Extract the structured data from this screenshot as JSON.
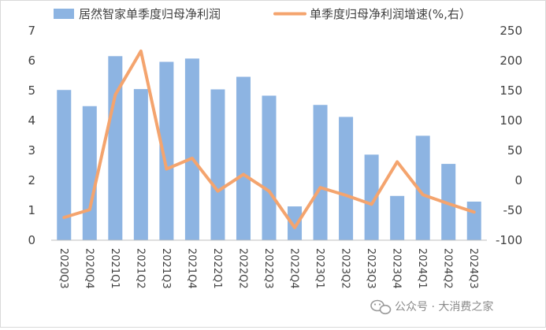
{
  "chart_data": {
    "type": "bar",
    "categories": [
      "2020Q3",
      "2020Q4",
      "2021Q1",
      "2021Q2",
      "2021Q3",
      "2021Q4",
      "2022Q1",
      "2022Q2",
      "2022Q3",
      "2022Q4",
      "2023Q1",
      "2023Q2",
      "2023Q3",
      "2023Q4",
      "2024Q1",
      "2024Q2",
      "2024Q3"
    ],
    "series": [
      {
        "name": "居然智家单季度归母净利润",
        "type": "bar",
        "axis": "left",
        "color": "#8db4e2",
        "values": [
          5.02,
          4.48,
          6.15,
          5.05,
          5.96,
          6.07,
          5.04,
          5.46,
          4.83,
          1.13,
          4.52,
          4.12,
          2.86,
          1.48,
          3.49,
          2.55,
          1.29
        ]
      },
      {
        "name": "单季度归母净利润增速(%,右）",
        "type": "line",
        "axis": "right",
        "color": "#f4a46e",
        "values": [
          -62,
          -49,
          143,
          216,
          19,
          37,
          -18,
          10,
          -18,
          -79,
          -12,
          -25,
          -40,
          31,
          -24,
          -39,
          -53
        ]
      }
    ],
    "y_left": {
      "min": 0,
      "max": 7,
      "ticks": [
        0,
        1,
        2,
        3,
        4,
        5,
        6,
        7
      ]
    },
    "y_right": {
      "min": -100,
      "max": 250,
      "ticks": [
        -100,
        -50,
        0,
        50,
        100,
        150,
        200,
        250
      ]
    },
    "grid": false,
    "legend": "top"
  },
  "watermark": {
    "text": "公众号 · 大消费之家",
    "icon": "wechat-icon"
  }
}
